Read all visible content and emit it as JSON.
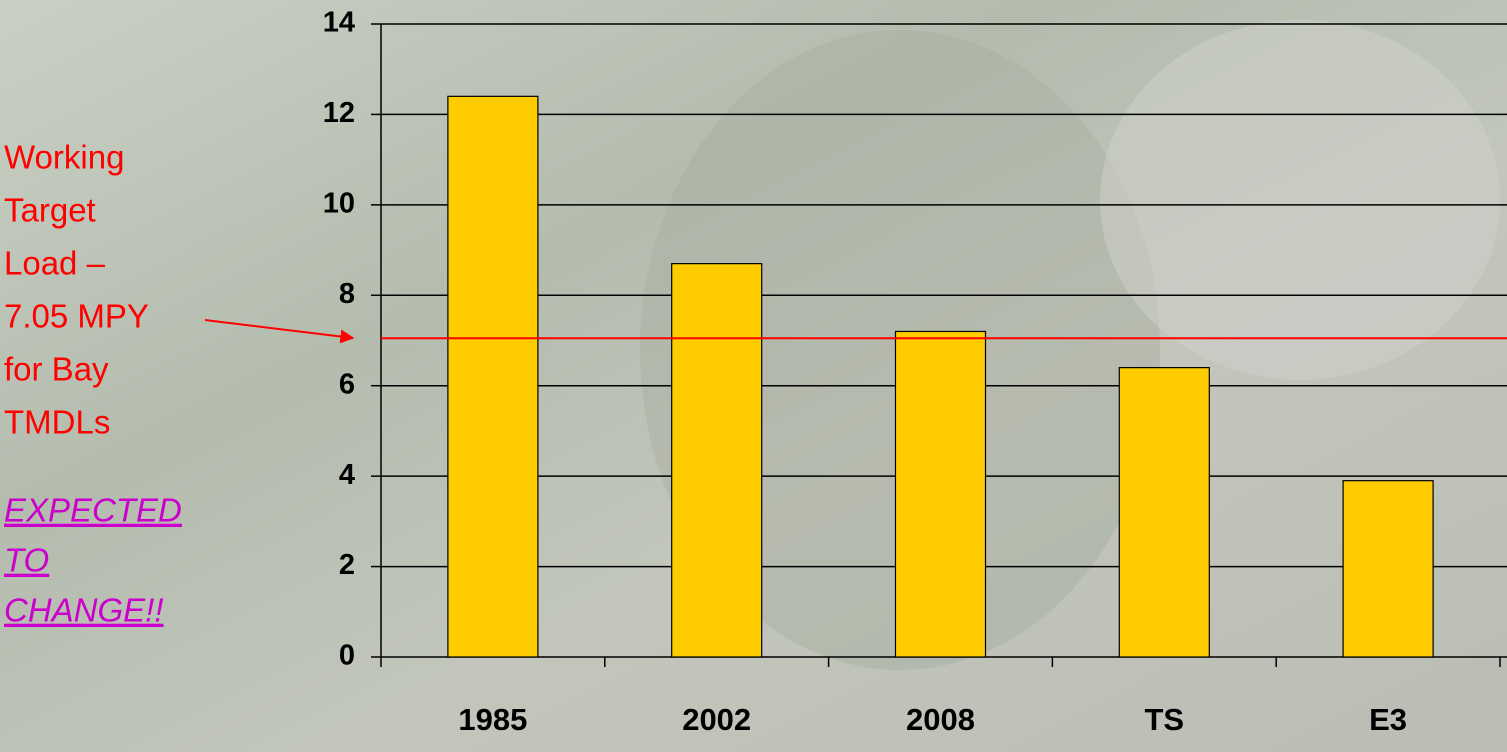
{
  "chart_data": {
    "type": "bar",
    "categories": [
      "1985",
      "2002",
      "2008",
      "TS",
      "E3"
    ],
    "values": [
      12.4,
      8.7,
      7.2,
      6.4,
      3.9
    ],
    "color": "#ffcc00",
    "ylim": [
      0,
      14
    ],
    "yticks": [
      0,
      2,
      4,
      6,
      8,
      10,
      12,
      14
    ],
    "grid": true,
    "target_line": 7.05,
    "target_color": "#ff0000",
    "annotation": [
      "Working",
      "Target",
      "Load –",
      "7.05 MPY",
      "for Bay",
      "TMDLs"
    ],
    "note": [
      "EXPECTED",
      "TO",
      "CHANGE!!"
    ],
    "note_color": "#cc00cc"
  }
}
